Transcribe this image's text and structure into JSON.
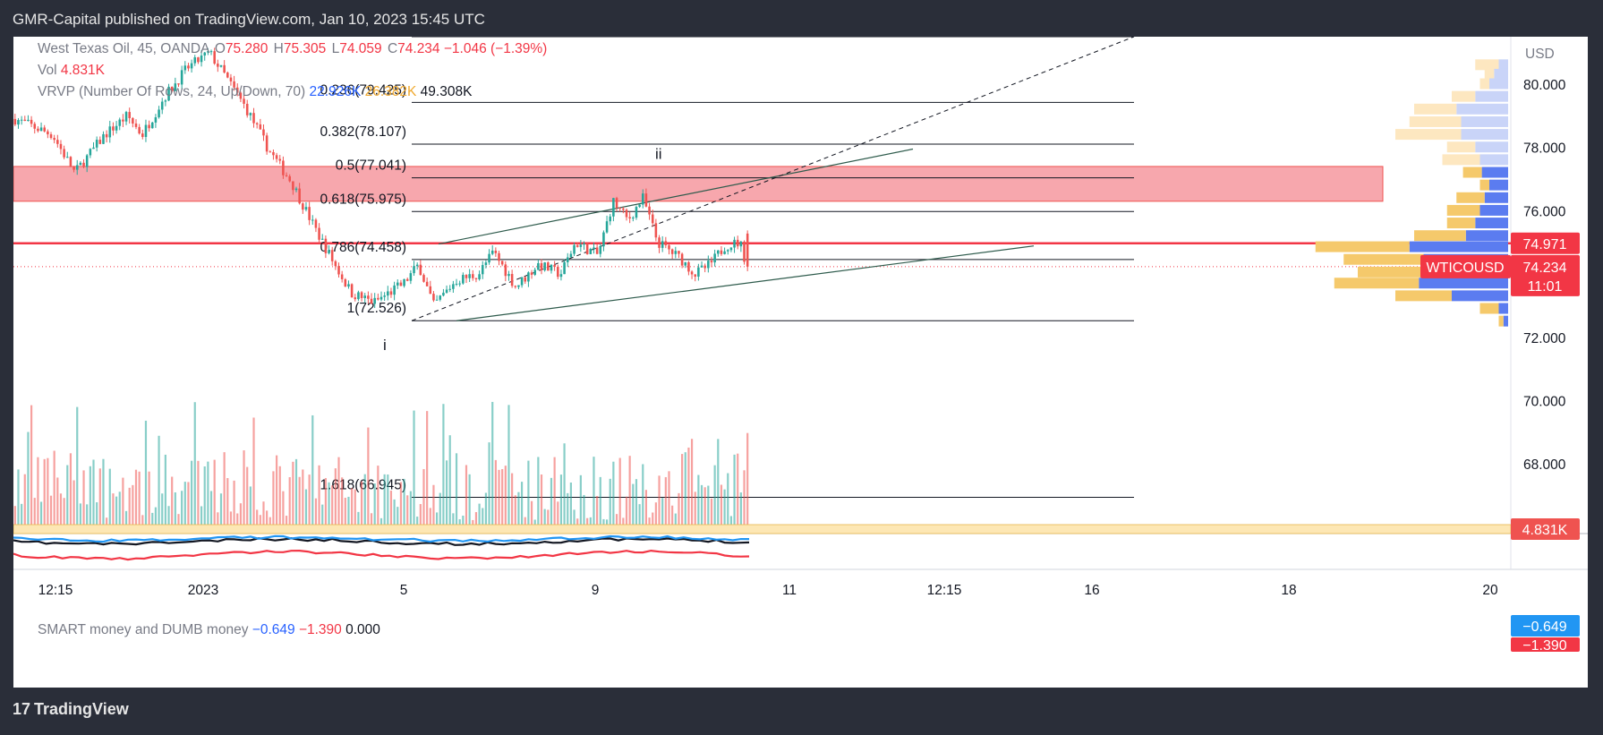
{
  "header": {
    "publish_text": "GMR-Capital published on TradingView.com, Jan 10, 2023 15:45 UTC"
  },
  "legend": {
    "symbol": "West Texas Oil, 45, OANDA",
    "o_label": "O",
    "o_value": "75.280",
    "h_label": "H",
    "h_value": "75.305",
    "l_label": "L",
    "l_value": "74.059",
    "c_label": "C",
    "c_value": "74.234",
    "change": "−1.046 (−1.39%)",
    "vol_label": "Vol",
    "vol_value": "4.831K",
    "vrvp_label": "VRVP (Number Of Rows, 24, Up/Down, 70)",
    "vrvp_up": "22.926K",
    "vrvp_down": "26.382K",
    "vrvp_total": "49.308K",
    "indicator_label": "SMART money and DUMB money",
    "indicator_v1": "−0.649",
    "indicator_v2": "−1.390",
    "indicator_v3": "0.000"
  },
  "footer": {
    "brand": "TradingView",
    "logo_glyph": "17"
  },
  "colors": {
    "up": "#26a69a",
    "down": "#ef5350",
    "zone": "#f7a7ad",
    "price_line": "#f23645",
    "vp_up": "#5b7cf0",
    "vp_down": "#f5c96b",
    "vp_up_light": "#c9d4f8",
    "vp_down_light": "#fde7c0",
    "smart": "#2196f3",
    "dumb": "#f23645"
  },
  "chart_data": {
    "type": "candlestick",
    "symbol": "West Texas Oil",
    "timeframe": "45",
    "exchange": "OANDA",
    "currency": "USD",
    "y_axis": {
      "range": [
        65.8,
        81.5
      ],
      "ticks": [
        "80.000",
        "78.000",
        "76.000",
        "74.000",
        "72.000",
        "70.000",
        "68.000"
      ],
      "tick_values": [
        80,
        78,
        76,
        74,
        72,
        70,
        68
      ],
      "unit_label": "USD"
    },
    "x_axis": {
      "ticks": [
        "12:15",
        "2023",
        "5",
        "9",
        "11",
        "12:15",
        "16",
        "18",
        "20"
      ]
    },
    "price_path": [
      [
        0,
        78.9
      ],
      [
        5,
        78.4
      ],
      [
        8,
        77.2
      ],
      [
        12,
        78.4
      ],
      [
        15,
        79.0
      ],
      [
        17,
        78.4
      ],
      [
        20,
        79.6
      ],
      [
        23,
        80.5
      ],
      [
        26,
        81.0
      ],
      [
        28,
        80.3
      ],
      [
        31,
        79.2
      ],
      [
        34,
        77.9
      ],
      [
        37,
        76.9
      ],
      [
        40,
        75.5
      ],
      [
        43,
        74.2
      ],
      [
        45,
        73.4
      ],
      [
        48,
        73.1
      ],
      [
        52,
        73.7
      ],
      [
        54,
        74.3
      ],
      [
        56,
        73.0
      ],
      [
        59,
        73.8
      ],
      [
        62,
        74.0
      ],
      [
        64,
        74.7
      ],
      [
        67,
        73.6
      ],
      [
        70,
        74.3
      ],
      [
        73,
        74.0
      ],
      [
        75,
        75.0
      ],
      [
        78,
        74.6
      ],
      [
        80,
        76.3
      ],
      [
        82,
        75.7
      ],
      [
        84,
        76.4
      ],
      [
        86,
        75.0
      ],
      [
        89,
        74.5
      ],
      [
        91,
        74.0
      ],
      [
        93,
        74.3
      ],
      [
        95,
        74.9
      ],
      [
        97,
        75.0
      ],
      [
        98,
        74.2
      ]
    ],
    "last_close": 74.234,
    "last_open": 75.28,
    "volume_profile_rows": [
      {
        "price": 80.6,
        "up": 0.1,
        "down": 0.25
      },
      {
        "price": 80.3,
        "up": 0.15,
        "down": 0.1
      },
      {
        "price": 80.0,
        "up": 0.2,
        "down": 0.1
      },
      {
        "price": 79.6,
        "up": 0.35,
        "down": 0.25
      },
      {
        "price": 79.2,
        "up": 0.55,
        "down": 0.45
      },
      {
        "price": 78.8,
        "up": 0.5,
        "down": 0.55
      },
      {
        "price": 78.4,
        "up": 0.5,
        "down": 0.7
      },
      {
        "price": 78.0,
        "up": 0.35,
        "down": 0.3
      },
      {
        "price": 77.6,
        "up": 0.3,
        "down": 0.4
      },
      {
        "price": 77.2,
        "up": 0.28,
        "down": 0.2
      },
      {
        "price": 76.8,
        "up": 0.2,
        "down": 0.1
      },
      {
        "price": 76.4,
        "up": 0.25,
        "down": 0.3
      },
      {
        "price": 76.0,
        "up": 0.3,
        "down": 0.35
      },
      {
        "price": 75.6,
        "up": 0.35,
        "down": 0.3
      },
      {
        "price": 75.2,
        "up": 0.45,
        "down": 0.55
      },
      {
        "price": 74.85,
        "up": 1.05,
        "down": 1.0
      },
      {
        "price": 74.45,
        "up": 0.9,
        "down": 0.85
      },
      {
        "price": 74.05,
        "up": 0.9,
        "down": 0.7
      },
      {
        "price": 73.7,
        "up": 0.95,
        "down": 0.9
      },
      {
        "price": 73.3,
        "up": 0.6,
        "down": 0.6
      },
      {
        "price": 72.9,
        "up": 0.1,
        "down": 0.2
      },
      {
        "price": 72.5,
        "up": 0.05,
        "down": 0.05
      }
    ],
    "fibonacci": [
      {
        "level": "0.236",
        "price": 79.425,
        "label": "0.236(79.425)"
      },
      {
        "level": "0.382",
        "price": 78.107,
        "label": "0.382(78.107)"
      },
      {
        "level": "0.5",
        "price": 77.041,
        "label": "0.5(77.041)"
      },
      {
        "level": "0.618",
        "price": 75.975,
        "label": "0.618(75.975)"
      },
      {
        "level": "0.786",
        "price": 74.458,
        "label": "0.786(74.458)"
      },
      {
        "level": "1",
        "price": 72.526,
        "label": "1(72.526)"
      },
      {
        "level": "1.618",
        "price": 66.945,
        "label": "1.618(66.945)"
      }
    ],
    "wave_labels": [
      "i",
      "ii"
    ],
    "supply_zone": {
      "top": 77.4,
      "bottom": 76.3
    },
    "horizontal_line_price": 74.971,
    "price_labels": {
      "hline": "74.971",
      "symbol_tag": "WTICOUSD",
      "last": "74.234",
      "countdown": "11:01",
      "volume": "4.831K",
      "smart": "−0.649",
      "dumb": "−1.390"
    }
  }
}
